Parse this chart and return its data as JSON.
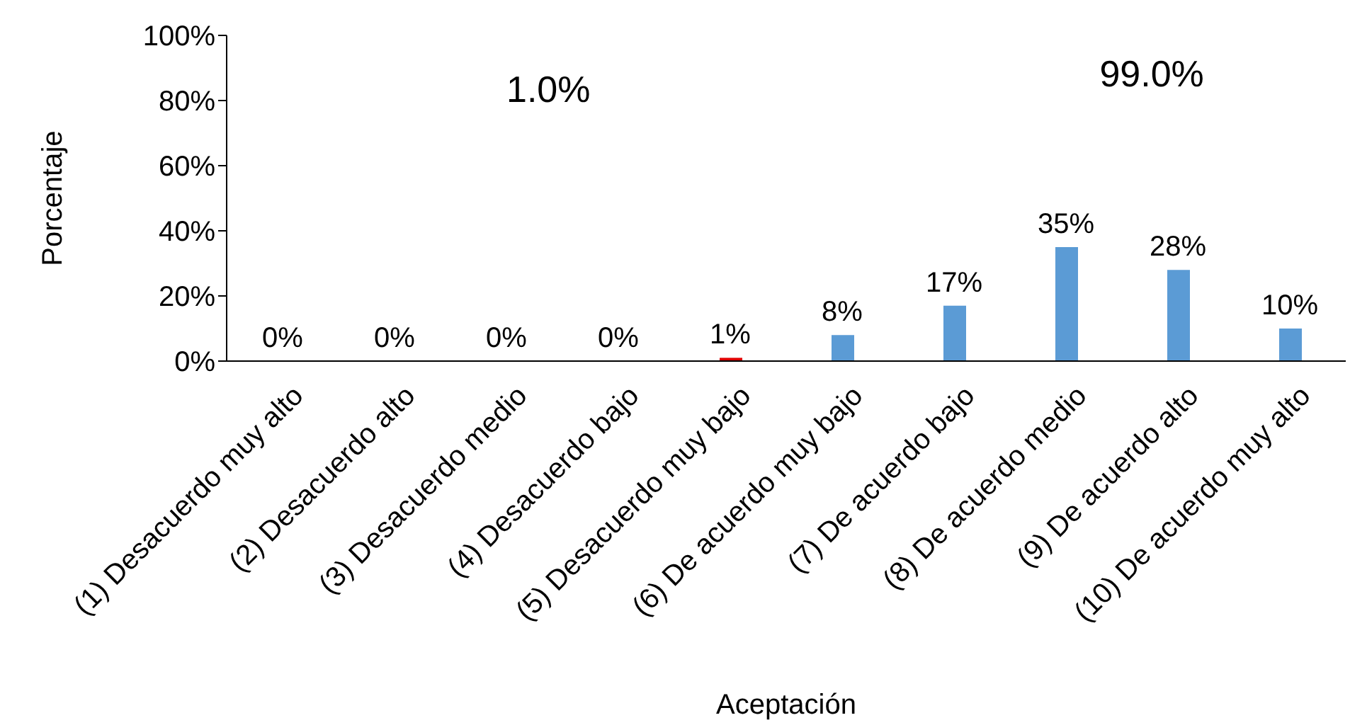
{
  "chart_data": {
    "type": "bar",
    "xlabel": "Aceptación",
    "ylabel": "Porcentaje",
    "categories": [
      "(1) Desacuerdo muy alto",
      "(2) Desacuerdo alto",
      "(3) Desacuerdo medio",
      "(4) Desacuerdo bajo",
      "(5) Desacuerdo muy bajo",
      "(6) De acuerdo muy bajo",
      "(7) De acuerdo bajo",
      "(8) De acuerdo medio",
      "(9) De acuerdo alto",
      "(10) De acuerdo muy alto"
    ],
    "values": [
      0,
      0,
      0,
      0,
      1,
      8,
      17,
      35,
      28,
      10
    ],
    "colors": [
      "#5b9bd5",
      "#5b9bd5",
      "#5b9bd5",
      "#5b9bd5",
      "#e00000",
      "#5b9bd5",
      "#5b9bd5",
      "#5b9bd5",
      "#5b9bd5",
      "#5b9bd5"
    ],
    "value_labels": [
      "0%",
      "0%",
      "0%",
      "0%",
      "1%",
      "8%",
      "17%",
      "35%",
      "28%",
      "10%"
    ],
    "ylim": [
      0,
      100
    ],
    "yticks": [
      {
        "value": 0,
        "label": "0%"
      },
      {
        "value": 20,
        "label": "20%"
      },
      {
        "value": 40,
        "label": "40%"
      },
      {
        "value": 60,
        "label": "60%"
      },
      {
        "value": 80,
        "label": "80%"
      },
      {
        "value": 100,
        "label": "100%"
      }
    ],
    "annotations": [
      "1.0%",
      "99.0%"
    ],
    "grid": false,
    "legend": false
  }
}
